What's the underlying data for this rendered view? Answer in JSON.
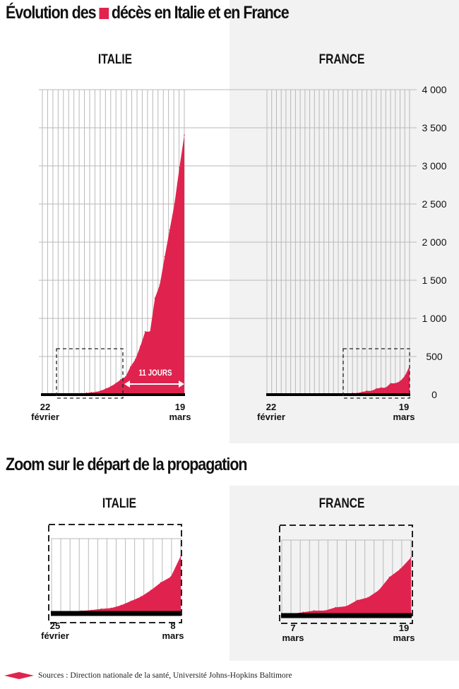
{
  "title": {
    "before": "Évolution des",
    "after": "décès en Italie et en France"
  },
  "subtitle": "Zoom sur le départ de la propagation",
  "source": "Sources : Direction nationale de la santé, Université Johns-Hopkins Baltimore",
  "colors": {
    "accent": "#e0234e",
    "grid": "#b9b9b9",
    "axis": "#000000",
    "panel_bg": "#f2f2f2"
  },
  "chart_data": [
    {
      "type": "area",
      "panel": "ITALIE",
      "title": "ITALIE",
      "y_axis_ticks": [
        "4 000",
        "3 500",
        "3 000",
        "2 500",
        "2 000",
        "1 500",
        "1 000",
        "500",
        "0"
      ],
      "ylim": [
        0,
        4000
      ],
      "x_labels": [
        [
          "22",
          "février"
        ],
        [
          "19",
          "mars"
        ]
      ],
      "annotation": "11 JOURS",
      "series": [
        {
          "values": [
            0,
            0,
            0,
            2,
            3,
            7,
            10,
            12,
            17,
            21,
            29,
            34,
            52,
            79,
            107,
            148,
            197,
            233,
            366,
            463,
            631,
            827,
            827,
            1266,
            1441,
            1809,
            2158,
            2503,
            2978,
            3405
          ]
        }
      ]
    },
    {
      "type": "area",
      "panel": "FRANCE",
      "title": "FRANCE",
      "ylim": [
        0,
        4000
      ],
      "x_labels": [
        [
          "22",
          "février"
        ],
        [
          "19",
          "mars"
        ]
      ],
      "series": [
        {
          "values": [
            0,
            0,
            0,
            0,
            0,
            0,
            0,
            2,
            2,
            2,
            2,
            2,
            3,
            4,
            4,
            6,
            9,
            11,
            19,
            19,
            33,
            48,
            48,
            79,
            91,
            91,
            148,
            148,
            175,
            244,
            372
          ]
        }
      ]
    },
    {
      "type": "area",
      "panel": "ITALIE-zoom",
      "title": "ITALIE",
      "x_labels": [
        [
          "25",
          "février"
        ],
        [
          "8",
          "mars"
        ]
      ],
      "series": [
        {
          "values": [
            7,
            10,
            12,
            17,
            21,
            29,
            34,
            52,
            79,
            107,
            148,
            197,
            233,
            366
          ]
        }
      ]
    },
    {
      "type": "area",
      "panel": "FRANCE-zoom",
      "title": "FRANCE",
      "x_labels": [
        [
          "7",
          "mars"
        ],
        [
          "19",
          "mars"
        ]
      ],
      "series": [
        {
          "values": [
            16,
            19,
            33,
            48,
            48,
            79,
            91,
            148,
            175,
            244,
            372,
            450,
            562
          ]
        }
      ]
    }
  ]
}
